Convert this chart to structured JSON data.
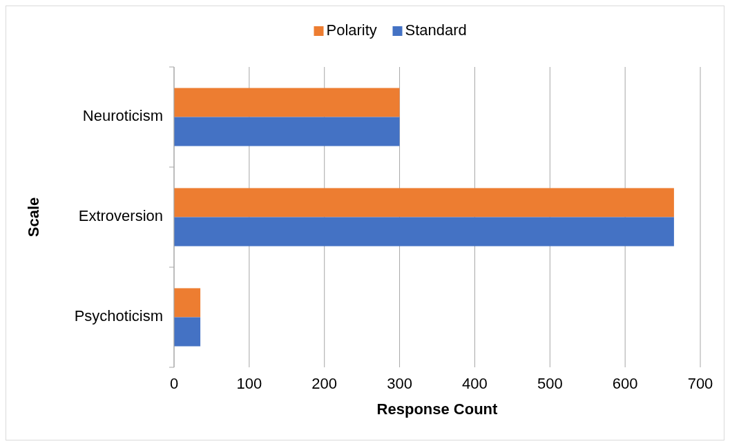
{
  "chart_data": {
    "type": "bar",
    "orientation": "horizontal",
    "xlabel": "Response Count",
    "ylabel": "Scale",
    "categories": [
      "Neuroticism",
      "Extroversion",
      "Psychoticism"
    ],
    "series": [
      {
        "name": "Polarity",
        "color": "#ed7d31",
        "values": [
          300,
          665,
          35
        ]
      },
      {
        "name": "Standard",
        "color": "#4472c4",
        "values": [
          300,
          665,
          35
        ]
      }
    ],
    "xlim": [
      0,
      700
    ],
    "xticks": [
      0,
      100,
      200,
      300,
      400,
      500,
      600,
      700
    ],
    "grid": "x",
    "legend": "top"
  }
}
